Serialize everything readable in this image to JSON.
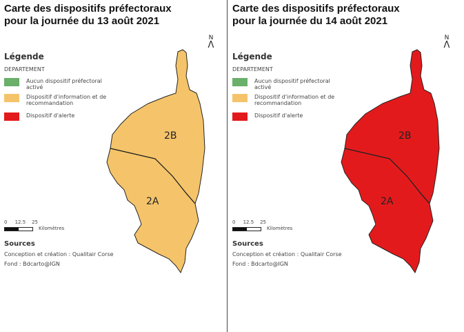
{
  "panels": [
    {
      "title_line1": "Carte des dispositifs préfectoraux",
      "title_line2": "pour la journée du 13 août 2021",
      "fill": "#f5c46a",
      "labels": {
        "north": "2B",
        "south": "2A"
      }
    },
    {
      "title_line1": "Carte des dispositifs préfectoraux",
      "title_line2": "pour la journée du 14 août 2021",
      "fill": "#e31a1c",
      "labels": {
        "north": "2B",
        "south": "2A"
      }
    }
  ],
  "legend": {
    "title": "Légende",
    "subtitle": "DEPARTEMENT",
    "items": [
      {
        "label": "Aucun dispositif préfectoral activé",
        "color": "#6aaf6a"
      },
      {
        "label": "Dispositif d'information et de recommandation",
        "color": "#f5c46a"
      },
      {
        "label": "Dispositif d'alerte",
        "color": "#e31a1c"
      }
    ]
  },
  "scale": {
    "ticks": "0     12.5    25",
    "unit": "Kilomètres"
  },
  "north": "N",
  "sources": {
    "title": "Sources",
    "line1": "Conception et création : Qualitair Corse",
    "line2": "Fond : Bdcarto@IGN"
  }
}
